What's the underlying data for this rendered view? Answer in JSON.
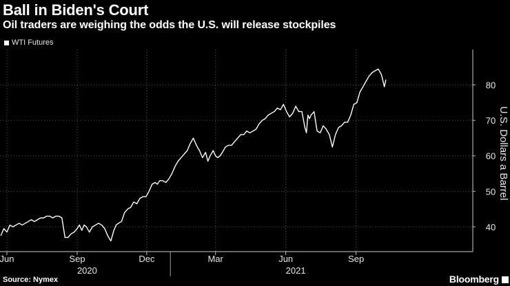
{
  "header": {
    "title": "Ball in Biden's Court",
    "subtitle": "Oil traders are weighing the odds the U.S. will release stockpiles"
  },
  "legend": {
    "label": "WTI Futures"
  },
  "footer": {
    "source": "Source: Nymex",
    "brand": "Bloomberg"
  },
  "colors": {
    "background": "#000000",
    "line": "#ffffff",
    "grid": "#5a5a5a",
    "text": "#ffffff"
  },
  "chart_data": {
    "type": "line",
    "title": "Ball in Biden's Court",
    "subtitle": "Oil traders are weighing the odds the U.S. will release stockpiles",
    "xlabel": "",
    "ylabel": "U.S. Dollars a Barrel",
    "y_axis_side": "right",
    "ylim": [
      33,
      90
    ],
    "yticks": [
      40,
      50,
      60,
      70,
      80
    ],
    "xlim_days": [
      0,
      500
    ],
    "xticks": [
      {
        "label": "Jun",
        "day": 0
      },
      {
        "label": "Sep",
        "day": 92
      },
      {
        "label": "Dec",
        "day": 183
      },
      {
        "label": "Mar",
        "day": 273
      },
      {
        "label": "Jun",
        "day": 365
      },
      {
        "label": "Sep",
        "day": 457
      }
    ],
    "year_labels": [
      {
        "label": "2020",
        "day": 105
      },
      {
        "label": "2021",
        "day": 378
      }
    ],
    "grid": true,
    "legend": "top-left",
    "series": [
      {
        "name": "WTI Futures",
        "x": [
          -8,
          -4,
          0,
          4,
          8,
          12,
          16,
          20,
          24,
          28,
          32,
          36,
          40,
          44,
          48,
          52,
          56,
          60,
          64,
          68,
          72,
          76,
          80,
          84,
          88,
          92,
          95,
          98,
          101,
          104,
          108,
          112,
          116,
          120,
          124,
          128,
          132,
          136,
          140,
          143,
          146,
          150,
          154,
          158,
          162,
          166,
          170,
          174,
          178,
          182,
          186,
          190,
          194,
          197,
          200,
          204,
          208,
          212,
          216,
          220,
          224,
          228,
          232,
          236,
          240,
          244,
          248,
          252,
          256,
          260,
          263,
          266,
          270,
          273,
          276,
          279,
          282,
          286,
          290,
          294,
          298,
          302,
          306,
          310,
          314,
          318,
          322,
          326,
          330,
          334,
          338,
          342,
          346,
          350,
          354,
          358,
          362,
          366,
          370,
          374,
          378,
          382,
          386,
          390,
          392,
          394,
          396,
          398,
          402,
          406,
          410,
          414,
          418,
          422,
          426,
          430,
          434,
          438,
          442,
          446,
          450,
          454,
          458,
          462,
          466,
          470,
          474,
          478,
          482,
          486,
          490,
          494,
          496
        ],
        "values": [
          37.5,
          39.5,
          38.5,
          40.5,
          40.0,
          40.5,
          41.0,
          40.5,
          41.0,
          41.5,
          42.0,
          41.5,
          42.0,
          42.5,
          42.5,
          43.0,
          43.0,
          42.5,
          43.0,
          43.0,
          42.5,
          37.0,
          37.0,
          38.0,
          38.5,
          39.5,
          40.5,
          39.0,
          40.5,
          40.0,
          38.5,
          40.0,
          40.5,
          41.0,
          40.5,
          39.5,
          37.5,
          36.0,
          39.0,
          40.5,
          41.0,
          41.5,
          44.0,
          45.0,
          45.5,
          47.0,
          46.5,
          48.0,
          48.5,
          48.5,
          50.0,
          52.0,
          52.5,
          52.0,
          53.0,
          53.0,
          52.5,
          53.5,
          55.0,
          57.0,
          58.5,
          59.5,
          60.5,
          61.5,
          63.5,
          65.0,
          63.0,
          61.5,
          59.5,
          61.0,
          58.5,
          60.0,
          61.5,
          60.0,
          59.5,
          60.0,
          61.0,
          62.5,
          63.0,
          63.0,
          64.0,
          65.0,
          66.0,
          66.0,
          67.0,
          66.5,
          67.0,
          67.5,
          69.0,
          70.0,
          70.5,
          71.5,
          72.0,
          72.5,
          73.5,
          73.0,
          74.5,
          72.5,
          71.0,
          72.0,
          74.0,
          72.5,
          72.5,
          68.0,
          66.5,
          71.5,
          70.5,
          71.5,
          72.5,
          67.0,
          66.5,
          68.5,
          67.5,
          66.0,
          62.5,
          66.0,
          68.0,
          68.5,
          69.5,
          69.5,
          71.5,
          74.5,
          75.0,
          78.0,
          79.5,
          81.0,
          82.5,
          83.5,
          84.0,
          84.5,
          83.0,
          79.5,
          81.5
        ]
      }
    ]
  }
}
